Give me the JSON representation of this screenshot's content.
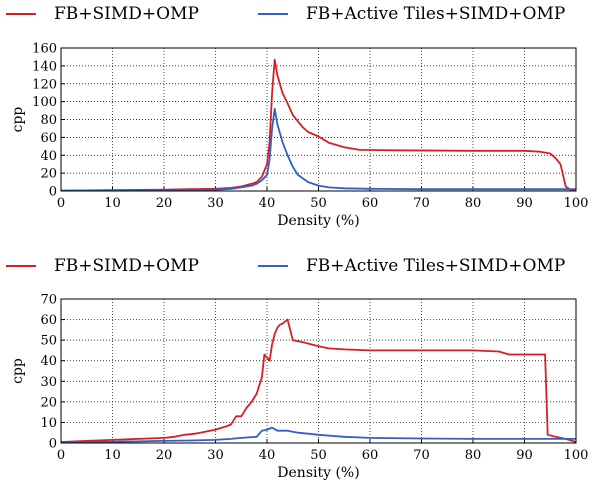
{
  "chart_data": [
    {
      "type": "line",
      "xlabel": "Density (%)",
      "ylabel": "cpp",
      "xlim": [
        0,
        100
      ],
      "ylim": [
        0,
        160
      ],
      "xticks": [
        0,
        10,
        20,
        30,
        40,
        50,
        60,
        70,
        80,
        90,
        100
      ],
      "yticks": [
        0,
        20,
        40,
        60,
        80,
        100,
        120,
        140,
        160
      ],
      "grid": true,
      "legend_position": "top, above plot",
      "series": [
        {
          "name": "FB+SIMD+OMP",
          "color": "#d62020",
          "points": [
            [
              0,
              0.5
            ],
            [
              10,
              1
            ],
            [
              20,
              1.5
            ],
            [
              25,
              2
            ],
            [
              30,
              2.5
            ],
            [
              33,
              3.5
            ],
            [
              35,
              5
            ],
            [
              37,
              8
            ],
            [
              38,
              10
            ],
            [
              39,
              16
            ],
            [
              40,
              30
            ],
            [
              40.5,
              55
            ],
            [
              41,
              110
            ],
            [
              41.5,
              147
            ],
            [
              42,
              130
            ],
            [
              43,
              110
            ],
            [
              44,
              98
            ],
            [
              45,
              85
            ],
            [
              46,
              78
            ],
            [
              47,
              71
            ],
            [
              48,
              66
            ],
            [
              50,
              61
            ],
            [
              52,
              54
            ],
            [
              55,
              49
            ],
            [
              58,
              46
            ],
            [
              65,
              45.5
            ],
            [
              80,
              45
            ],
            [
              90,
              45
            ],
            [
              93,
              44
            ],
            [
              95,
              42
            ],
            [
              96,
              37
            ],
            [
              97,
              30
            ],
            [
              98,
              5
            ],
            [
              99,
              1
            ],
            [
              100,
              0.5
            ]
          ]
        },
        {
          "name": "FB+Active Tiles+SIMD+OMP",
          "color": "#3060c8",
          "points": [
            [
              0,
              0.5
            ],
            [
              10,
              0.8
            ],
            [
              20,
              1
            ],
            [
              30,
              1.5
            ],
            [
              33,
              2.5
            ],
            [
              35,
              4
            ],
            [
              37,
              6
            ],
            [
              38,
              8
            ],
            [
              39,
              12
            ],
            [
              40,
              18
            ],
            [
              40.5,
              35
            ],
            [
              41,
              70
            ],
            [
              41.5,
              92
            ],
            [
              42,
              75
            ],
            [
              43,
              55
            ],
            [
              44,
              40
            ],
            [
              45,
              27
            ],
            [
              46,
              18
            ],
            [
              48,
              10
            ],
            [
              50,
              6
            ],
            [
              52,
              4
            ],
            [
              55,
              3
            ],
            [
              60,
              2.5
            ],
            [
              70,
              2
            ],
            [
              80,
              2
            ],
            [
              90,
              2
            ],
            [
              95,
              2
            ],
            [
              98,
              2
            ],
            [
              100,
              2
            ]
          ]
        }
      ]
    },
    {
      "type": "line",
      "xlabel": "Density (%)",
      "ylabel": "cpp",
      "xlim": [
        0,
        100
      ],
      "ylim": [
        0,
        70
      ],
      "xticks": [
        0,
        10,
        20,
        30,
        40,
        50,
        60,
        70,
        80,
        90,
        100
      ],
      "yticks": [
        0,
        10,
        20,
        30,
        40,
        50,
        60,
        70
      ],
      "grid": true,
      "legend_position": "top, above plot",
      "series": [
        {
          "name": "FB+SIMD+OMP",
          "color": "#d62020",
          "points": [
            [
              0,
              0.5
            ],
            [
              5,
              1
            ],
            [
              10,
              1.5
            ],
            [
              15,
              2
            ],
            [
              20,
              2.5
            ],
            [
              22,
              3
            ],
            [
              24,
              4
            ],
            [
              26,
              4.5
            ],
            [
              28,
              5.5
            ],
            [
              30,
              6.5
            ],
            [
              32,
              8
            ],
            [
              33,
              9
            ],
            [
              34,
              13
            ],
            [
              35,
              13
            ],
            [
              36,
              17
            ],
            [
              37,
              20
            ],
            [
              38,
              24
            ],
            [
              39,
              32
            ],
            [
              39.5,
              43
            ],
            [
              40.5,
              40
            ],
            [
              41,
              48
            ],
            [
              41.5,
              53
            ],
            [
              42,
              56
            ],
            [
              42.5,
              57.5
            ],
            [
              43,
              58
            ],
            [
              44,
              60
            ],
            [
              45,
              50
            ],
            [
              46,
              49.5
            ],
            [
              47,
              49
            ],
            [
              50,
              47
            ],
            [
              52,
              46
            ],
            [
              55,
              45.5
            ],
            [
              60,
              45
            ],
            [
              70,
              45
            ],
            [
              80,
              45
            ],
            [
              85,
              44.5
            ],
            [
              87,
              43
            ],
            [
              90,
              43
            ],
            [
              94,
              43
            ],
            [
              94.5,
              4
            ],
            [
              96,
              3
            ],
            [
              98,
              2
            ],
            [
              100,
              0.5
            ]
          ]
        },
        {
          "name": "FB+Active Tiles+SIMD+OMP",
          "color": "#3060c8",
          "points": [
            [
              0,
              0.3
            ],
            [
              10,
              0.6
            ],
            [
              20,
              1
            ],
            [
              25,
              1.2
            ],
            [
              30,
              1.5
            ],
            [
              33,
              2
            ],
            [
              35,
              2.5
            ],
            [
              38,
              3
            ],
            [
              39,
              6
            ],
            [
              40,
              6.5
            ],
            [
              41,
              7.5
            ],
            [
              42,
              6
            ],
            [
              44,
              6
            ],
            [
              46,
              5
            ],
            [
              48,
              4.5
            ],
            [
              50,
              4
            ],
            [
              55,
              3
            ],
            [
              60,
              2.5
            ],
            [
              70,
              2.2
            ],
            [
              80,
              2
            ],
            [
              90,
              2
            ],
            [
              95,
              2
            ],
            [
              100,
              2
            ]
          ]
        }
      ]
    }
  ]
}
